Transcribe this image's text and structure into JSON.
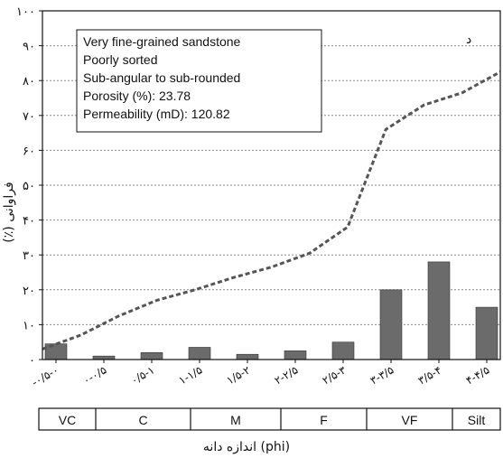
{
  "chart_data": {
    "type": "bar",
    "categories": [
      "-۰/۵-۰",
      "۰-۰/۵",
      "۰/۵-۱",
      "۱-۱/۵",
      "۱/۵-۲",
      "۲-۲/۵",
      "۲/۵-۳",
      "۳-۳/۵",
      "۳/۵-۴",
      "۴-۴/۵"
    ],
    "values": [
      4.5,
      1,
      2,
      3.5,
      1.5,
      2.5,
      5,
      20,
      28,
      15
    ],
    "cumulative_line": [
      3,
      7,
      12.5,
      17,
      20,
      23.5,
      26.5,
      30.5,
      38,
      66,
      73,
      76.5,
      82.5
    ],
    "ylim": [
      0,
      100
    ],
    "yticks": [
      "۰",
      "۱۰",
      "۲۰",
      "۳۰",
      "۴۰",
      "۵۰",
      "۶۰",
      "۷۰",
      "۸۰",
      "۹۰",
      "۱۰۰"
    ],
    "ylabel": "فراوانی (٪)",
    "xlabel": "اندازه دانه (phi)",
    "corner_label": "د",
    "grid": true,
    "annotation_lines": [
      "Very fine-grained sandstone",
      "Poorly sorted",
      "Sub-angular to sub-rounded",
      "Porosity (%): 23.78",
      "Permeability (mD): 120.82"
    ],
    "size_classes": [
      "VC",
      "C",
      "M",
      "F",
      "VF",
      "Silt"
    ],
    "colors": {
      "bar": "#6b6b6b",
      "line": "#555555",
      "grid": "#8a8a8a"
    }
  }
}
